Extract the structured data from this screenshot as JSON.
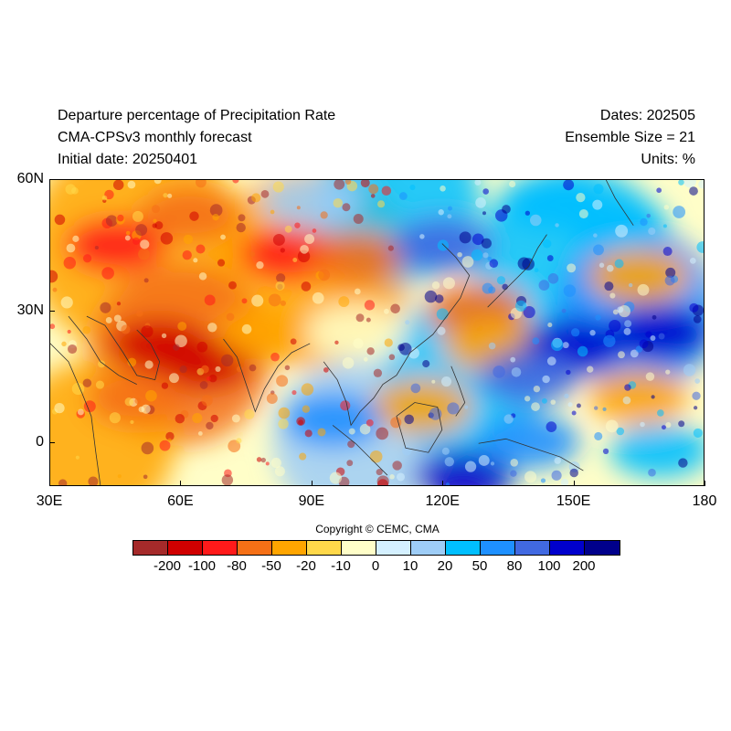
{
  "header": {
    "title_line1": "Departure percentage of Precipitation Rate",
    "title_line2": "CMA-CPSv3 monthly forecast",
    "title_line3": "Initial date: 20250401",
    "dates": "Dates: 202505",
    "ensemble": "Ensemble Size = 21",
    "units": "Units: %"
  },
  "map": {
    "lon_range": [
      30,
      180
    ],
    "lat_range": [
      -10,
      60
    ],
    "y_ticks": [
      {
        "lat": 60,
        "label": "60N"
      },
      {
        "lat": 30,
        "label": "30N"
      },
      {
        "lat": 0,
        "label": "0"
      }
    ],
    "x_ticks": [
      {
        "lon": 30,
        "label": "30E"
      },
      {
        "lon": 60,
        "label": "60E"
      },
      {
        "lon": 90,
        "label": "90E"
      },
      {
        "lon": 120,
        "label": "120E"
      },
      {
        "lon": 150,
        "label": "150E"
      },
      {
        "lon": 180,
        "label": "180"
      }
    ],
    "anomaly_regions": [
      {
        "lon": 45,
        "lat": 45,
        "level": 2
      },
      {
        "lon": 62,
        "lat": 52,
        "level": 3
      },
      {
        "lon": 85,
        "lat": 43,
        "level": 2
      },
      {
        "lon": 100,
        "lat": 42,
        "level": 3
      },
      {
        "lon": 55,
        "lat": 22,
        "level": 1
      },
      {
        "lon": 65,
        "lat": 18,
        "level": 1
      },
      {
        "lon": 50,
        "lat": 10,
        "level": 3
      },
      {
        "lon": 80,
        "lat": 25,
        "level": 4
      },
      {
        "lon": 100,
        "lat": 25,
        "level": 6
      },
      {
        "lon": 115,
        "lat": 8,
        "level": 4
      },
      {
        "lon": 128,
        "lat": 30,
        "level": 3
      },
      {
        "lon": 132,
        "lat": 22,
        "level": 4
      },
      {
        "lon": 165,
        "lat": 10,
        "level": 4
      },
      {
        "lon": 165,
        "lat": 38,
        "level": 4
      },
      {
        "lon": 120,
        "lat": 45,
        "level": 11
      },
      {
        "lon": 145,
        "lat": 55,
        "level": 9
      },
      {
        "lon": 150,
        "lat": 22,
        "level": 12
      },
      {
        "lon": 170,
        "lat": 25,
        "level": 12
      },
      {
        "lon": 140,
        "lat": 15,
        "level": 11
      },
      {
        "lon": 125,
        "lat": -8,
        "level": 12
      },
      {
        "lon": 140,
        "lat": 0,
        "level": 10
      },
      {
        "lon": 170,
        "lat": -2,
        "level": 9
      },
      {
        "lon": 95,
        "lat": 5,
        "level": 10
      },
      {
        "lon": 90,
        "lat": 55,
        "level": 8
      },
      {
        "lon": 160,
        "lat": 50,
        "level": 9
      }
    ]
  },
  "copyright": "Copyright © CEMC, CMA",
  "colorbar": {
    "colors": [
      "#a52a2a",
      "#d00000",
      "#ff1a1a",
      "#f57016",
      "#ffa500",
      "#ffd84a",
      "#fffec8",
      "#d4f0ff",
      "#9ecdf7",
      "#00bfff",
      "#1e90ff",
      "#4169e1",
      "#0000cd",
      "#00008b"
    ],
    "labels": [
      "-200",
      "-100",
      "-80",
      "-50",
      "-20",
      "-10",
      "0",
      "10",
      "20",
      "50",
      "80",
      "100",
      "200"
    ]
  }
}
